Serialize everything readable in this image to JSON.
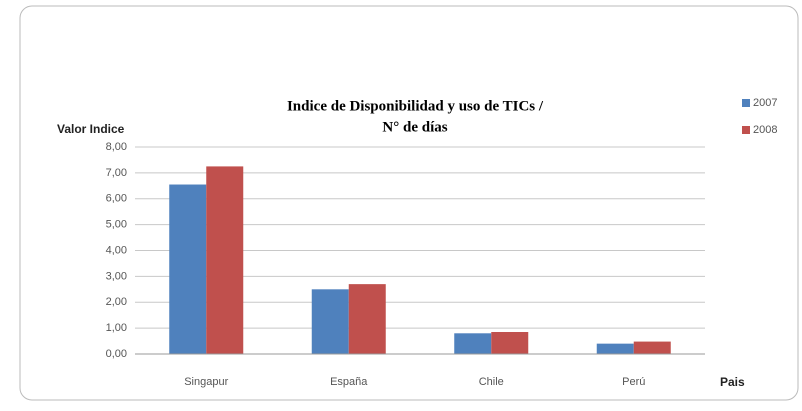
{
  "chart_data": {
    "type": "bar",
    "title": [
      "Indice de Disponibilidad y uso de TICs /",
      "N° de días"
    ],
    "y_label": "Valor Indice",
    "x_label": "Pais",
    "categories": [
      "Singapur",
      "España",
      "Chile",
      "Perú"
    ],
    "series": [
      {
        "name": "2007",
        "color": "#4f81bd",
        "values": [
          6.55,
          2.5,
          0.8,
          0.4
        ]
      },
      {
        "name": "2008",
        "color": "#c0504d",
        "values": [
          7.25,
          2.7,
          0.85,
          0.48
        ]
      }
    ],
    "ylim": [
      0,
      8
    ],
    "yticks": [
      {
        "value": 0,
        "label": "0,00"
      },
      {
        "value": 1,
        "label": "1,00"
      },
      {
        "value": 2,
        "label": "2,00"
      },
      {
        "value": 3,
        "label": "3,00"
      },
      {
        "value": 4,
        "label": "4,00"
      },
      {
        "value": 5,
        "label": "5,00"
      },
      {
        "value": 6,
        "label": "6,00"
      },
      {
        "value": 7,
        "label": "7,00"
      },
      {
        "value": 8,
        "label": "8,00"
      }
    ],
    "grid": true,
    "legend": "top-right"
  }
}
